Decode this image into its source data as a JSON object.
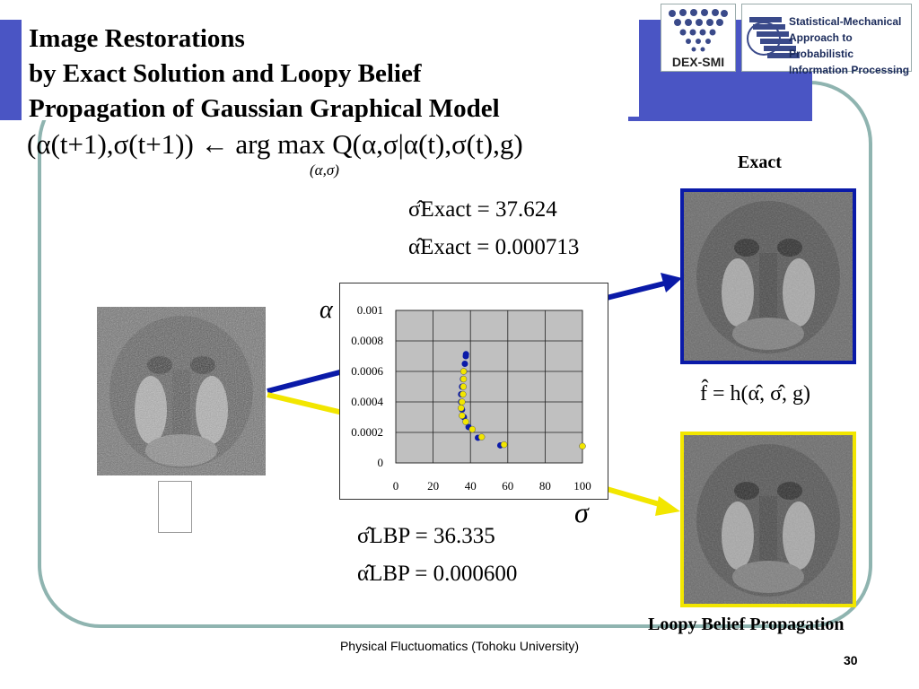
{
  "title": {
    "line1": "Image Restorations",
    "line2": "by Exact Solution and Loopy Belief",
    "line3": "Propagation of Gaussian Graphical Model"
  },
  "equation": {
    "main": "(α(t+1),σ(t+1)) ← arg max Q(α,σ|α(t),σ(t),g)",
    "sub": "(α,σ)"
  },
  "logos": {
    "dex_smi": "DEX-SMI",
    "smapip_lines": [
      "Statistical-Mechanical",
      "Approach to Probabilistic",
      "Information Processing"
    ]
  },
  "exact_stats": {
    "sigma": "σ̂Exact = 37.624",
    "alpha": "α̂Exact = 0.000713"
  },
  "lbp_stats": {
    "sigma": "σ̂LBP = 36.335",
    "alpha": "α̂LBP = 0.000600"
  },
  "estimate_formula": "f̂ = h(α̂, σ̂, g)",
  "labels": {
    "exact": "Exact",
    "lbp": "Loopy Belief Propagation",
    "alpha_axis": "α",
    "sigma_axis": "σ"
  },
  "footer": {
    "org": "Physical Fluctuomatics (Tohoku University)",
    "page": "30"
  },
  "colors": {
    "blue": "#0a1aa8",
    "yellow": "#f2e600",
    "frame": "#8fb4b0",
    "title_bar": "#4a55c4",
    "plot_bg": "#c0c0c0"
  },
  "chart_data": {
    "type": "scatter",
    "x_ticks": [
      "0",
      "20",
      "40",
      "60",
      "80",
      "100"
    ],
    "y_ticks": [
      "0",
      "0.0002",
      "0.0004",
      "0.0006",
      "0.0008",
      "0.001"
    ],
    "xlim": [
      0,
      100
    ],
    "ylim": [
      0,
      0.001
    ],
    "xlabel": "σ",
    "ylabel": "α",
    "grid": true,
    "series": [
      {
        "color": "#0a1aa8",
        "points": [
          [
            100,
            0.00011
          ],
          [
            56,
            0.000115
          ],
          [
            44,
            0.000165
          ],
          [
            39,
            0.000235
          ],
          [
            36.5,
            0.0003
          ],
          [
            35.5,
            0.00035
          ],
          [
            35,
            0.0004
          ],
          [
            35,
            0.00045
          ],
          [
            35.5,
            0.0005
          ],
          [
            36,
            0.00055
          ],
          [
            36.5,
            0.0006
          ],
          [
            37,
            0.00065
          ],
          [
            37.5,
            0.0007
          ],
          [
            37.6,
            0.000713
          ]
        ]
      },
      {
        "color": "#f2e600",
        "points": [
          [
            100,
            0.00011
          ],
          [
            58,
            0.00012
          ],
          [
            46,
            0.00017
          ],
          [
            41,
            0.00022
          ],
          [
            37.5,
            0.00027
          ],
          [
            35.5,
            0.00031
          ],
          [
            35,
            0.00036
          ],
          [
            35.5,
            0.0004
          ],
          [
            36,
            0.00045
          ],
          [
            36.2,
            0.0005
          ],
          [
            36.3,
            0.00055
          ],
          [
            36.335,
            0.0006
          ]
        ]
      }
    ]
  }
}
